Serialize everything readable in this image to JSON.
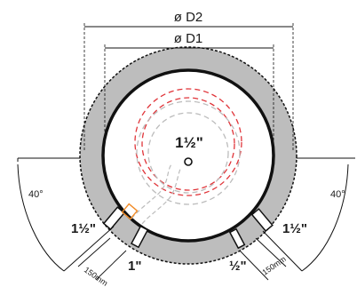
{
  "dimensions": {
    "outer_diameter_label": "ø D2",
    "inner_diameter_label": "ø D1"
  },
  "angles": {
    "left_label": "40°",
    "right_label": "40°"
  },
  "center": {
    "size_label": "1½\""
  },
  "openings": {
    "left_upper_label": "1½\"",
    "left_lower_label": "1\"",
    "right_upper_label": "1½\"",
    "right_lower_label": "½\""
  },
  "offsets": {
    "left_label": "150mm",
    "right_label": "150mm"
  },
  "colors": {
    "ring_fill": "#bdbdbd",
    "ring_outline": "#111111",
    "red_dash": "#e0353a",
    "gray_dash": "#bcbcbc",
    "marker": "#f28c28"
  }
}
